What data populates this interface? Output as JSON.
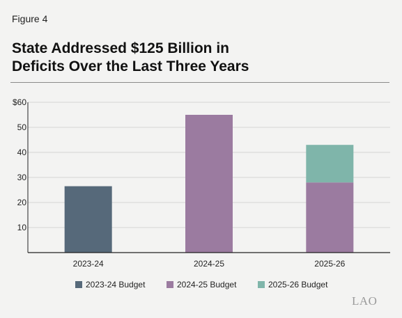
{
  "figure_label": "Figure 4",
  "title_line1": "State Addressed $125 Billion in",
  "title_line2": "Deficits Over the Last Three Years",
  "logo_text": "LAO",
  "chart_data": {
    "type": "bar",
    "stacked": true,
    "categories": [
      "2023-24",
      "2024-25",
      "2025-26"
    ],
    "series": [
      {
        "name": "2023-24 Budget",
        "color": "#56697a",
        "values": [
          26.5,
          0,
          0
        ]
      },
      {
        "name": "2024-25 Budget",
        "color": "#9b7ba0",
        "values": [
          0,
          55,
          28
        ]
      },
      {
        "name": "2025-26 Budget",
        "color": "#7fb5aa",
        "values": [
          0,
          0,
          15
        ]
      }
    ],
    "ylim": [
      0,
      60
    ],
    "yticks": [
      10,
      20,
      30,
      40,
      50,
      60
    ],
    "ytick_labels": [
      "10",
      "20",
      "30",
      "40",
      "50",
      "$60"
    ],
    "grid": true,
    "legend_position": "bottom"
  }
}
